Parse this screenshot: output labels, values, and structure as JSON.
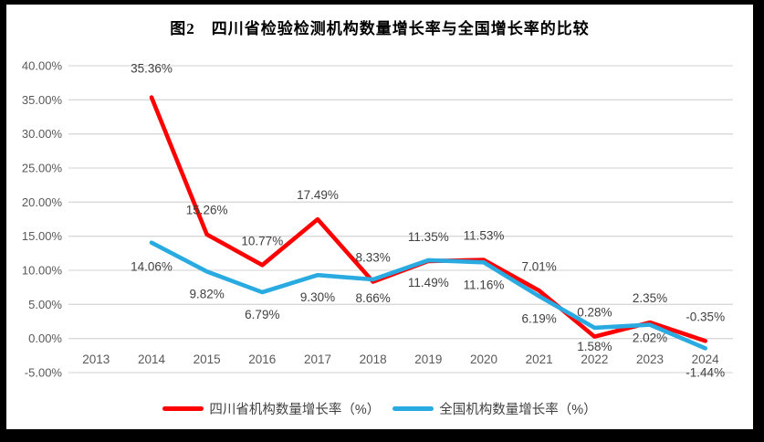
{
  "chart": {
    "title": "图2　四川省检验检测机构数量增长率与全国增长率的比较"
  },
  "chart_data": {
    "type": "line",
    "title": "图2　四川省检验检测机构数量增长率与全国增长率的比较",
    "categories": [
      "2013",
      "2014",
      "2015",
      "2016",
      "2017",
      "2018",
      "2019",
      "2020",
      "2021",
      "2022",
      "2023",
      "2024"
    ],
    "series": [
      {
        "name": "四川省机构数量增长率（%）",
        "color": "#FF0000",
        "label_position": "above",
        "values": [
          null,
          35.36,
          15.26,
          10.77,
          17.49,
          8.33,
          11.35,
          11.53,
          7.01,
          0.28,
          2.35,
          -0.35
        ],
        "data_labels": [
          "",
          "35.36%",
          "15.26%",
          "10.77%",
          "17.49%",
          "8.33%",
          "11.35%",
          "11.53%",
          "7.01%",
          "0.28%",
          "2.35%",
          "-0.35%"
        ]
      },
      {
        "name": "全国机构数量增长率（%）",
        "color": "#29ABE2",
        "label_position": "below",
        "values": [
          null,
          14.06,
          9.82,
          6.79,
          9.3,
          8.66,
          11.49,
          11.16,
          6.19,
          1.58,
          2.02,
          -1.44
        ],
        "data_labels": [
          "",
          "14.06%",
          "9.82%",
          "6.79%",
          "9.30%",
          "8.66%",
          "11.49%",
          "11.16%",
          "6.19%",
          "1.58%",
          "2.02%",
          "-1.44%"
        ]
      }
    ],
    "y_axis": {
      "min": -5,
      "max": 40,
      "step": 5,
      "tick_labels": [
        "40.00%",
        "35.00%",
        "30.00%",
        "25.00%",
        "20.00%",
        "15.00%",
        "10.00%",
        "5.00%",
        "0.00%",
        "-5.00%"
      ]
    },
    "x_axis": {
      "tick_labels": [
        "2013",
        "2014",
        "2015",
        "2016",
        "2017",
        "2018",
        "2019",
        "2020",
        "2021",
        "2022",
        "2023",
        "2024"
      ]
    },
    "grid": true,
    "legend_position": "bottom",
    "colors": {
      "gridline": "#D9D9D9",
      "axis_text": "#595959",
      "data_label_text": "#404040",
      "title_text": "#000000",
      "legend_text": "#404040"
    }
  }
}
